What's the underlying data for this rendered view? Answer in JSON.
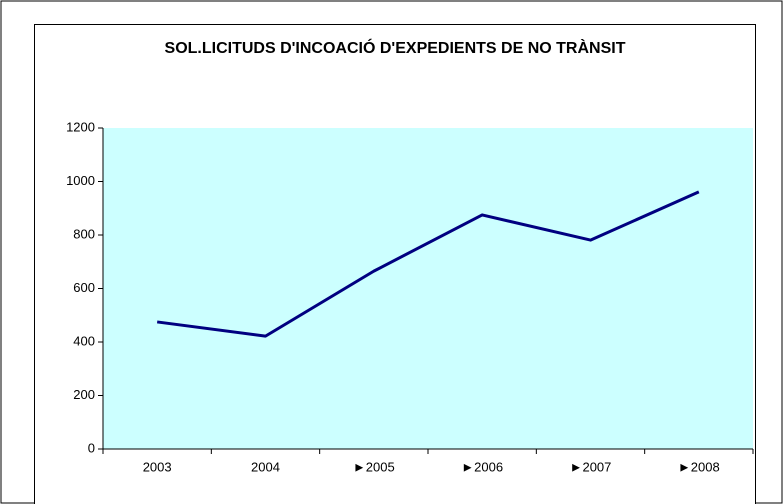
{
  "chart_data": {
    "type": "line",
    "title": "SOL.LICITUDS D'INCOACIÓ D'EXPEDIENTS DE NO TRÀNSIT",
    "categories": [
      "2003",
      "2004",
      "►2005",
      "►2006",
      "►2007",
      "►2008"
    ],
    "series": [
      {
        "color": "#000080",
        "values": [
          475,
          422,
          665,
          875,
          781,
          961
        ]
      }
    ],
    "ylim": [
      0,
      1200
    ],
    "yticks": [
      0,
      200,
      400,
      600,
      800,
      1000,
      1200
    ],
    "plot_background": "#ccffff"
  }
}
